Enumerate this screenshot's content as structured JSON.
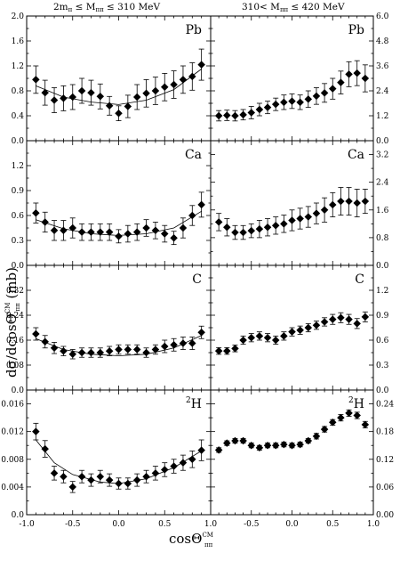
{
  "figure": {
    "column_titles": [
      [
        "2m",
        "π",
        "≤ M",
        "ππ",
        "≤ 310 MeV"
      ],
      [
        "310< M",
        "ππ",
        "≤ 420 MeV"
      ]
    ],
    "ylabel": [
      "dσ/dcosΘ",
      "CM",
      "ππ",
      " (mb)"
    ],
    "xlabel": [
      "cosΘ",
      "CM",
      "ππ"
    ]
  },
  "chart_data": [
    {
      "type": "scatter",
      "panel": "Pb low-mass",
      "label": "Pb",
      "label_sup": "",
      "xlim": [
        -1,
        1
      ],
      "ylim": [
        0,
        2.0
      ],
      "yticks": [
        "0.0",
        "0.4",
        "0.8",
        "1.2",
        "1.6",
        "2.0"
      ],
      "x": [
        -0.9,
        -0.8,
        -0.7,
        -0.6,
        -0.5,
        -0.4,
        -0.3,
        -0.2,
        -0.1,
        0.0,
        0.1,
        0.2,
        0.3,
        0.4,
        0.5,
        0.6,
        0.7,
        0.8,
        0.9
      ],
      "y": [
        0.98,
        0.77,
        0.65,
        0.68,
        0.7,
        0.8,
        0.77,
        0.71,
        0.56,
        0.44,
        0.55,
        0.7,
        0.76,
        0.8,
        0.86,
        0.9,
        0.98,
        1.03,
        1.22
      ],
      "yerr": [
        0.22,
        0.2,
        0.2,
        0.2,
        0.2,
        0.2,
        0.2,
        0.2,
        0.15,
        0.12,
        0.18,
        0.2,
        0.22,
        0.22,
        0.22,
        0.22,
        0.22,
        0.22,
        0.25
      ],
      "curve": [
        [
          -0.9,
          0.88
        ],
        [
          -0.6,
          0.7
        ],
        [
          -0.3,
          0.62
        ],
        [
          0.0,
          0.58
        ],
        [
          0.3,
          0.65
        ],
        [
          0.6,
          0.82
        ],
        [
          0.9,
          1.15
        ]
      ]
    },
    {
      "type": "scatter",
      "panel": "Pb high-mass",
      "label": "Pb",
      "label_sup": "",
      "xlim": [
        -1,
        1
      ],
      "ylim": [
        0,
        6.0
      ],
      "yticks": [
        "0.0",
        "1.2",
        "2.4",
        "3.6",
        "4.8",
        "6.0"
      ],
      "x": [
        -0.9,
        -0.8,
        -0.7,
        -0.6,
        -0.5,
        -0.4,
        -0.3,
        -0.2,
        -0.1,
        0.0,
        0.1,
        0.2,
        0.3,
        0.4,
        0.5,
        0.6,
        0.7,
        0.8,
        0.9
      ],
      "y": [
        1.2,
        1.22,
        1.2,
        1.25,
        1.35,
        1.5,
        1.6,
        1.75,
        1.85,
        1.9,
        1.85,
        2.0,
        2.15,
        2.3,
        2.5,
        2.8,
        3.2,
        3.25,
        3.0
      ],
      "yerr": [
        0.25,
        0.25,
        0.25,
        0.25,
        0.3,
        0.3,
        0.3,
        0.3,
        0.35,
        0.35,
        0.35,
        0.4,
        0.4,
        0.45,
        0.5,
        0.55,
        0.6,
        0.6,
        0.65
      ],
      "curve": []
    },
    {
      "type": "scatter",
      "panel": "Ca low-mass",
      "label": "Ca",
      "label_sup": "",
      "xlim": [
        -1,
        1
      ],
      "ylim": [
        0,
        1.5
      ],
      "yticks": [
        "0.0",
        "0.3",
        "0.6",
        "0.9",
        "1.2"
      ],
      "x": [
        -0.9,
        -0.8,
        -0.7,
        -0.6,
        -0.5,
        -0.4,
        -0.3,
        -0.2,
        -0.1,
        0.0,
        0.1,
        0.2,
        0.3,
        0.4,
        0.5,
        0.6,
        0.7,
        0.8,
        0.9
      ],
      "y": [
        0.63,
        0.52,
        0.42,
        0.42,
        0.45,
        0.4,
        0.4,
        0.4,
        0.4,
        0.35,
        0.38,
        0.4,
        0.45,
        0.42,
        0.38,
        0.33,
        0.45,
        0.6,
        0.73
      ],
      "yerr": [
        0.12,
        0.12,
        0.12,
        0.12,
        0.12,
        0.1,
        0.1,
        0.1,
        0.1,
        0.08,
        0.1,
        0.1,
        0.1,
        0.1,
        0.1,
        0.08,
        0.12,
        0.12,
        0.15
      ],
      "curve": [
        [
          -0.9,
          0.55
        ],
        [
          -0.6,
          0.44
        ],
        [
          -0.3,
          0.38
        ],
        [
          0.0,
          0.36
        ],
        [
          0.3,
          0.38
        ],
        [
          0.6,
          0.45
        ],
        [
          0.9,
          0.65
        ]
      ]
    },
    {
      "type": "scatter",
      "panel": "Ca high-mass",
      "label": "Ca",
      "label_sup": "",
      "xlim": [
        -1,
        1
      ],
      "ylim": [
        0,
        3.6
      ],
      "yticks": [
        "0.0",
        "0.8",
        "1.6",
        "2.4",
        "3.2"
      ],
      "x": [
        -0.9,
        -0.8,
        -0.7,
        -0.6,
        -0.5,
        -0.4,
        -0.3,
        -0.2,
        -0.1,
        0.0,
        0.1,
        0.2,
        0.3,
        0.4,
        0.5,
        0.6,
        0.7,
        0.8,
        0.9
      ],
      "y": [
        1.25,
        1.1,
        0.95,
        0.95,
        1.0,
        1.05,
        1.1,
        1.15,
        1.2,
        1.3,
        1.35,
        1.4,
        1.5,
        1.6,
        1.75,
        1.85,
        1.85,
        1.8,
        1.85
      ],
      "yerr": [
        0.25,
        0.25,
        0.2,
        0.2,
        0.2,
        0.25,
        0.25,
        0.25,
        0.25,
        0.3,
        0.3,
        0.3,
        0.3,
        0.35,
        0.35,
        0.4,
        0.4,
        0.4,
        0.35
      ],
      "curve": []
    },
    {
      "type": "scatter",
      "panel": "C low-mass",
      "label": "C",
      "label_sup": "",
      "xlim": [
        -1,
        1
      ],
      "ylim": [
        0,
        0.4
      ],
      "yticks": [
        "0.0",
        "0.08",
        "0.16",
        "0.24",
        "0.32"
      ],
      "x": [
        -0.9,
        -0.8,
        -0.7,
        -0.6,
        -0.5,
        -0.4,
        -0.3,
        -0.2,
        -0.1,
        0.0,
        0.1,
        0.2,
        0.3,
        0.4,
        0.5,
        0.6,
        0.7,
        0.8,
        0.9
      ],
      "y": [
        0.18,
        0.155,
        0.135,
        0.125,
        0.115,
        0.12,
        0.12,
        0.12,
        0.125,
        0.13,
        0.13,
        0.13,
        0.12,
        0.13,
        0.14,
        0.145,
        0.15,
        0.15,
        0.185
      ],
      "yerr": [
        0.02,
        0.02,
        0.018,
        0.015,
        0.015,
        0.015,
        0.015,
        0.015,
        0.015,
        0.015,
        0.015,
        0.015,
        0.015,
        0.015,
        0.02,
        0.02,
        0.02,
        0.02,
        0.02
      ],
      "curve": [
        [
          -0.9,
          0.165
        ],
        [
          -0.6,
          0.13
        ],
        [
          -0.3,
          0.115
        ],
        [
          0.0,
          0.11
        ],
        [
          0.3,
          0.115
        ],
        [
          0.6,
          0.135
        ],
        [
          0.9,
          0.175
        ]
      ]
    },
    {
      "type": "scatter",
      "panel": "C high-mass",
      "label": "C",
      "label_sup": "",
      "xlim": [
        -1,
        1
      ],
      "ylim": [
        0,
        1.5
      ],
      "yticks": [
        "0.0",
        "0.3",
        "0.6",
        "0.9",
        "1.2"
      ],
      "x": [
        -0.9,
        -0.8,
        -0.7,
        -0.6,
        -0.5,
        -0.4,
        -0.3,
        -0.2,
        -0.1,
        0.0,
        0.1,
        0.2,
        0.3,
        0.4,
        0.5,
        0.6,
        0.7,
        0.8,
        0.9
      ],
      "y": [
        0.47,
        0.47,
        0.5,
        0.6,
        0.63,
        0.65,
        0.63,
        0.6,
        0.65,
        0.7,
        0.72,
        0.75,
        0.78,
        0.82,
        0.85,
        0.87,
        0.85,
        0.8,
        0.88
      ],
      "yerr": [
        0.04,
        0.04,
        0.04,
        0.05,
        0.05,
        0.05,
        0.05,
        0.05,
        0.05,
        0.05,
        0.05,
        0.05,
        0.05,
        0.05,
        0.06,
        0.06,
        0.06,
        0.06,
        0.06
      ],
      "curve": []
    },
    {
      "type": "scatter",
      "panel": "2H low-mass",
      "label": "H",
      "label_sup": "2",
      "xlim": [
        -1,
        1
      ],
      "ylim": [
        0,
        0.018
      ],
      "yticks": [
        "0.0",
        "0.004",
        "0.008",
        "0.012",
        "0.016"
      ],
      "x": [
        -0.9,
        -0.8,
        -0.7,
        -0.6,
        -0.5,
        -0.4,
        -0.3,
        -0.2,
        -0.1,
        0.0,
        0.1,
        0.2,
        0.3,
        0.4,
        0.5,
        0.6,
        0.7,
        0.8,
        0.9
      ],
      "y": [
        0.012,
        0.0095,
        0.006,
        0.0055,
        0.004,
        0.0055,
        0.005,
        0.0055,
        0.005,
        0.0045,
        0.0045,
        0.005,
        0.0055,
        0.006,
        0.0065,
        0.007,
        0.0075,
        0.008,
        0.0093
      ],
      "yerr": [
        0.0012,
        0.0012,
        0.001,
        0.0009,
        0.0008,
        0.0009,
        0.0009,
        0.0009,
        0.0009,
        0.0008,
        0.0008,
        0.0009,
        0.0009,
        0.001,
        0.001,
        0.001,
        0.0011,
        0.0012,
        0.0015
      ],
      "curve": [
        [
          -0.9,
          0.0108
        ],
        [
          -0.7,
          0.0075
        ],
        [
          -0.5,
          0.0058
        ],
        [
          -0.2,
          0.0047
        ],
        [
          0.0,
          0.0045
        ],
        [
          0.3,
          0.0052
        ],
        [
          0.6,
          0.0068
        ],
        [
          0.9,
          0.0092
        ]
      ]
    },
    {
      "type": "scatter",
      "panel": "2H high-mass",
      "label": "H",
      "label_sup": "2",
      "xlim": [
        -1,
        1
      ],
      "ylim": [
        0,
        0.27
      ],
      "yticks": [
        "0.00",
        "0.06",
        "0.12",
        "0.18",
        "0.24"
      ],
      "x": [
        -0.9,
        -0.8,
        -0.7,
        -0.6,
        -0.5,
        -0.4,
        -0.3,
        -0.2,
        -0.1,
        0.0,
        0.1,
        0.2,
        0.3,
        0.4,
        0.5,
        0.6,
        0.7,
        0.8,
        0.9
      ],
      "y": [
        0.14,
        0.155,
        0.16,
        0.16,
        0.15,
        0.145,
        0.15,
        0.15,
        0.152,
        0.15,
        0.152,
        0.16,
        0.17,
        0.185,
        0.2,
        0.21,
        0.22,
        0.215,
        0.195
      ],
      "yerr": [
        0.005,
        0.005,
        0.005,
        0.005,
        0.005,
        0.005,
        0.005,
        0.005,
        0.005,
        0.005,
        0.005,
        0.005,
        0.006,
        0.006,
        0.006,
        0.007,
        0.007,
        0.007,
        0.007
      ],
      "curve": []
    }
  ]
}
